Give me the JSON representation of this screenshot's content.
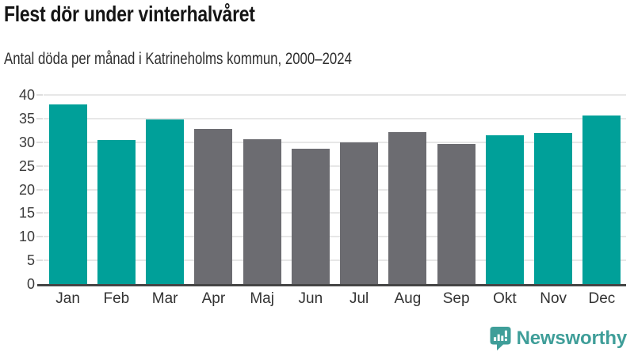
{
  "header": {
    "title": "Flest dör under vinterhalvåret",
    "subtitle": "Antal döda per månad i Katrineholms kommun, 2000–2024"
  },
  "chart_data": {
    "type": "bar",
    "title": "Flest dör under vinterhalvåret",
    "subtitle": "Antal döda per månad i Katrineholms kommun, 2000–2024",
    "categories": [
      "Jan",
      "Feb",
      "Mar",
      "Apr",
      "Maj",
      "Jun",
      "Jul",
      "Aug",
      "Sep",
      "Okt",
      "Nov",
      "Dec"
    ],
    "values": [
      38.0,
      30.4,
      34.9,
      32.8,
      30.6,
      28.7,
      29.9,
      32.1,
      29.7,
      31.4,
      31.9,
      35.6
    ],
    "bar_groups": [
      "winter",
      "winter",
      "winter",
      "summer",
      "summer",
      "summer",
      "summer",
      "summer",
      "summer",
      "winter",
      "winter",
      "winter"
    ],
    "palette": {
      "winter": "#00a099",
      "summer": "#6c6c71"
    },
    "xlabel": "",
    "ylabel": "",
    "ylim": [
      0,
      40
    ],
    "yticks": [
      0,
      5,
      10,
      15,
      20,
      25,
      30,
      35,
      40
    ],
    "grid": true,
    "legend": false,
    "gridline_color": "#e7e7e7",
    "axis_color": "#454545"
  },
  "footer": {
    "brand": "Newsworthy",
    "brand_color": "#3f9e99",
    "brand_icon": "speech-bubble-bar-chart-icon"
  }
}
